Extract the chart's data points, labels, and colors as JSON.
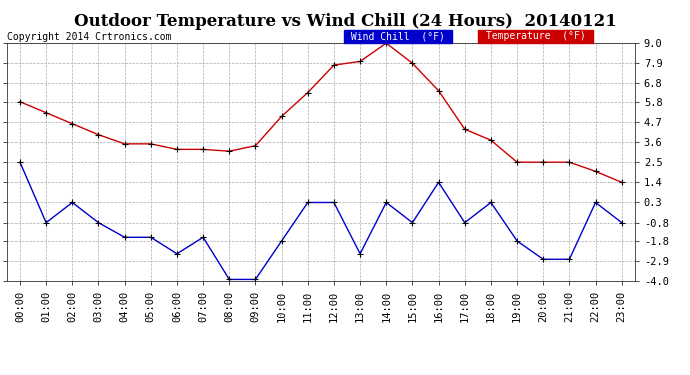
{
  "title": "Outdoor Temperature vs Wind Chill (24 Hours)  20140121",
  "copyright": "Copyright 2014 Crtronics.com",
  "background_color": "#ffffff",
  "plot_bg_color": "#ffffff",
  "grid_color": "#aaaaaa",
  "hours": [
    "00:00",
    "01:00",
    "02:00",
    "03:00",
    "04:00",
    "05:00",
    "06:00",
    "07:00",
    "08:00",
    "09:00",
    "10:00",
    "11:00",
    "12:00",
    "13:00",
    "14:00",
    "15:00",
    "16:00",
    "17:00",
    "18:00",
    "19:00",
    "20:00",
    "21:00",
    "22:00",
    "23:00"
  ],
  "temperature": [
    5.8,
    5.2,
    4.6,
    4.0,
    3.5,
    3.5,
    3.2,
    3.2,
    3.1,
    3.4,
    5.0,
    6.3,
    7.8,
    8.0,
    9.0,
    7.9,
    6.4,
    4.3,
    3.7,
    2.5,
    2.5,
    2.5,
    2.0,
    1.4
  ],
  "wind_chill": [
    2.5,
    -0.8,
    0.3,
    -0.8,
    -1.6,
    -1.6,
    -2.5,
    -1.6,
    -3.9,
    -3.9,
    -1.8,
    0.3,
    0.3,
    -2.5,
    0.3,
    -0.8,
    1.4,
    -0.8,
    0.3,
    -1.8,
    -2.8,
    -2.8,
    0.3,
    -0.8
  ],
  "temp_color": "#cc0000",
  "wind_chill_color": "#0000cc",
  "ylim_min": -4.0,
  "ylim_max": 9.0,
  "yticks": [
    9.0,
    7.9,
    6.8,
    5.8,
    4.7,
    3.6,
    2.5,
    1.4,
    0.3,
    -0.8,
    -1.8,
    -2.9,
    -4.0
  ],
  "title_fontsize": 12,
  "copyright_fontsize": 7,
  "tick_fontsize": 7.5,
  "legend_wind_label": "Wind Chill  (°F)",
  "legend_temp_label": "Temperature  (°F)",
  "legend_wind_bg": "#0000cc",
  "legend_temp_bg": "#cc0000",
  "legend_text_color": "#ffffff"
}
